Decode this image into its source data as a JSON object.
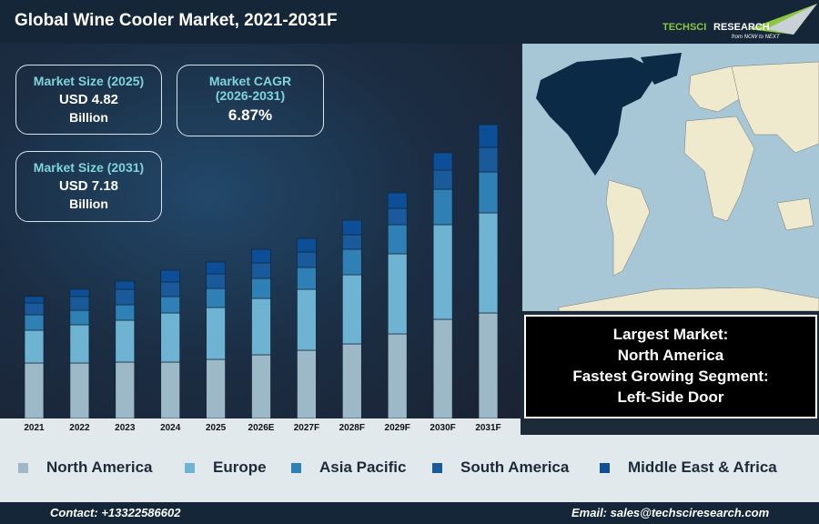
{
  "header": {
    "title": "Global Wine Cooler Market, 2021-2031F",
    "logo_text": "TECHSCI RESEARCH",
    "logo_tagline": "from NOW to NEXT"
  },
  "cards": [
    {
      "label": "Market Size (2025)",
      "value": "USD 4.82",
      "unit": "Billion"
    },
    {
      "label": "Market CAGR",
      "sub": "(2026-2031)",
      "value": "6.87%"
    },
    {
      "label": "Market Size (2031)",
      "value": "USD 7.18",
      "unit": "Billion"
    }
  ],
  "info": {
    "line1": "Largest Market:",
    "line2": "North America",
    "line3": "Fastest Growing Segment:",
    "line4": "Left-Side Door"
  },
  "footer": {
    "contact": "Contact: +13322586602",
    "email": "Email: sales@techsciresearch.com"
  },
  "chart_data": {
    "type": "bar",
    "stacked": true,
    "title": "",
    "xlabel": "",
    "ylabel": "",
    "grid": false,
    "legend_position": "bottom",
    "note": "no value axis printed; segment values are relative estimates",
    "categories": [
      "2021",
      "2022",
      "2023",
      "2024",
      "2025",
      "2026E",
      "2027F",
      "2028F",
      "2029F",
      "2030F",
      "2031F"
    ],
    "ylim": [
      0,
      330
    ],
    "series": [
      {
        "name": "North America",
        "color": "#9db8c6",
        "values": [
          61,
          61,
          62,
          62,
          65,
          70,
          75,
          82,
          93,
          109,
          116
        ]
      },
      {
        "name": "Europe",
        "color": "#6fb3d3",
        "values": [
          36,
          42,
          46,
          54,
          57,
          62,
          67,
          76,
          88,
          104,
          110
        ]
      },
      {
        "name": "Asia Pacific",
        "color": "#2e80b5",
        "values": [
          17,
          16,
          17,
          18,
          21,
          22,
          24,
          28,
          32,
          39,
          45
        ]
      },
      {
        "name": "South America",
        "color": "#1a5a9a",
        "values": [
          13,
          15,
          17,
          16,
          16,
          17,
          17,
          16,
          18,
          21,
          27
        ]
      },
      {
        "name": "Middle East & Africa",
        "color": "#0d4f96",
        "values": [
          7,
          8,
          9,
          13,
          13,
          15,
          15,
          16,
          17,
          19,
          25
        ]
      }
    ]
  }
}
